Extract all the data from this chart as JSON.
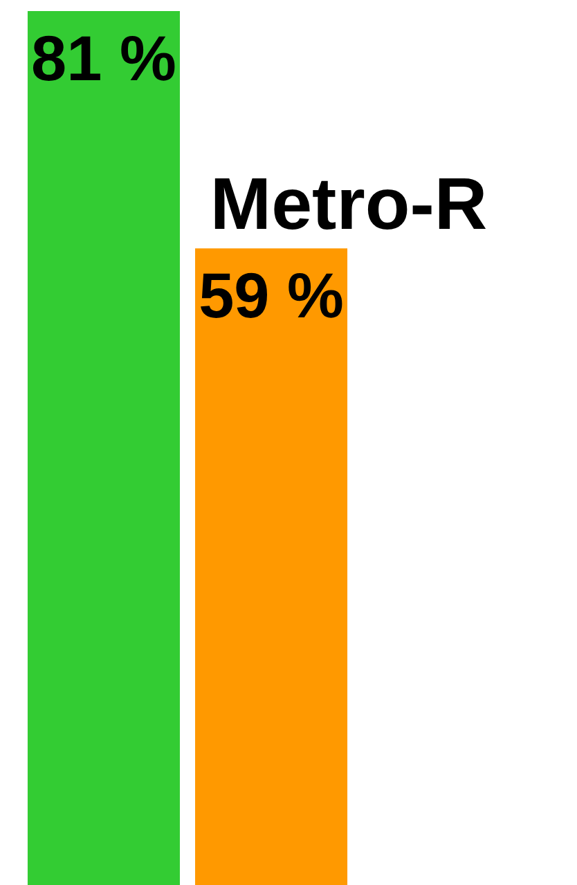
{
  "chart_data": {
    "type": "bar",
    "categories": [
      null
    ],
    "series": [
      {
        "color": "#33cc33",
        "values": [
          81
        ],
        "value_labels": [
          "81 %"
        ]
      },
      {
        "name": "Metro-R",
        "color": "#ff9900",
        "values": [
          59
        ],
        "value_labels": [
          "59 %"
        ]
      }
    ],
    "tick_labels": false,
    "grid": false,
    "legend": false
  }
}
